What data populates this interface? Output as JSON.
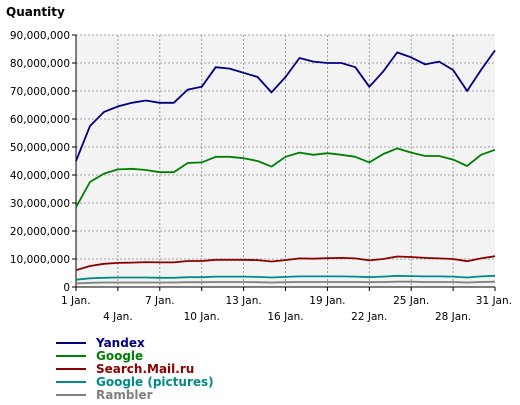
{
  "chart_data": {
    "type": "line",
    "ylabel": "Quantity",
    "ylim": [
      0,
      90000000
    ],
    "y_ticks": [
      "0",
      "10,000,000",
      "20,000,000",
      "30,000,000",
      "40,000,000",
      "50,000,000",
      "60,000,000",
      "70,000,000",
      "80,000,000",
      "90,000,000"
    ],
    "y_tick_values": [
      0,
      10000000,
      20000000,
      30000000,
      40000000,
      50000000,
      60000000,
      70000000,
      80000000,
      90000000
    ],
    "x": [
      1,
      2,
      3,
      4,
      5,
      6,
      7,
      8,
      9,
      10,
      11,
      12,
      13,
      14,
      15,
      16,
      17,
      18,
      19,
      20,
      21,
      22,
      23,
      24,
      25,
      26,
      27,
      28,
      29,
      30,
      31
    ],
    "x_tick_labels": [
      {
        "day": 1,
        "label": "1 Jan."
      },
      {
        "day": 4,
        "label": "4 Jan."
      },
      {
        "day": 7,
        "label": "7 Jan."
      },
      {
        "day": 10,
        "label": "10 Jan."
      },
      {
        "day": 13,
        "label": "13 Jan."
      },
      {
        "day": 16,
        "label": "16 Jan."
      },
      {
        "day": 19,
        "label": "19 Jan."
      },
      {
        "day": 22,
        "label": "22 Jan."
      },
      {
        "day": 25,
        "label": "25 Jan."
      },
      {
        "day": 28,
        "label": "28 Jan."
      },
      {
        "day": 31,
        "label": "31 Jan."
      }
    ],
    "grid": true,
    "legend_position": "bottom-left",
    "series": [
      {
        "name": "Yandex",
        "color": "#000080",
        "values": [
          45000000,
          57500000,
          62500000,
          64500000,
          65800000,
          66600000,
          65800000,
          65800000,
          70500000,
          71500000,
          78500000,
          78000000,
          76500000,
          75000000,
          69500000,
          75000000,
          81800000,
          80500000,
          80000000,
          80000000,
          78500000,
          71500000,
          77000000,
          83800000,
          82000000,
          79500000,
          80500000,
          77500000,
          70000000,
          77500000,
          84500000
        ]
      },
      {
        "name": "Google",
        "color": "#008000",
        "values": [
          28500000,
          37500000,
          40500000,
          42000000,
          42200000,
          41800000,
          41000000,
          41000000,
          44300000,
          44500000,
          46500000,
          46500000,
          46000000,
          45000000,
          43000000,
          46500000,
          48000000,
          47200000,
          47800000,
          47200000,
          46500000,
          44500000,
          47500000,
          49500000,
          48000000,
          46800000,
          46800000,
          45500000,
          43200000,
          47200000,
          49000000
        ]
      },
      {
        "name": "Search.Mail.ru",
        "color": "#8b0000",
        "values": [
          6000000,
          7500000,
          8300000,
          8600000,
          8700000,
          8900000,
          8800000,
          8800000,
          9300000,
          9300000,
          9700000,
          9700000,
          9700000,
          9600000,
          9100000,
          9600000,
          10200000,
          10100000,
          10300000,
          10400000,
          10200000,
          9500000,
          10000000,
          10900000,
          10700000,
          10400000,
          10200000,
          10000000,
          9200000,
          10200000,
          11000000
        ]
      },
      {
        "name": "Google (pictures)",
        "color": "#008b8b",
        "values": [
          2600000,
          3100000,
          3300000,
          3400000,
          3400000,
          3400000,
          3300000,
          3300000,
          3500000,
          3500000,
          3700000,
          3700000,
          3700000,
          3600000,
          3400000,
          3600000,
          3800000,
          3800000,
          3800000,
          3800000,
          3700000,
          3500000,
          3700000,
          4000000,
          3900000,
          3800000,
          3800000,
          3700000,
          3400000,
          3800000,
          4000000
        ]
      },
      {
        "name": "Rambler",
        "color": "#808080",
        "values": [
          1300000,
          1500000,
          1600000,
          1600000,
          1600000,
          1600000,
          1600000,
          1600000,
          1700000,
          1700000,
          1800000,
          1800000,
          1800000,
          1700000,
          1600000,
          1700000,
          1800000,
          1800000,
          1800000,
          1800000,
          1800000,
          1700000,
          1800000,
          1900000,
          1900000,
          1800000,
          1800000,
          1800000,
          1600000,
          1800000,
          1900000
        ]
      }
    ]
  }
}
